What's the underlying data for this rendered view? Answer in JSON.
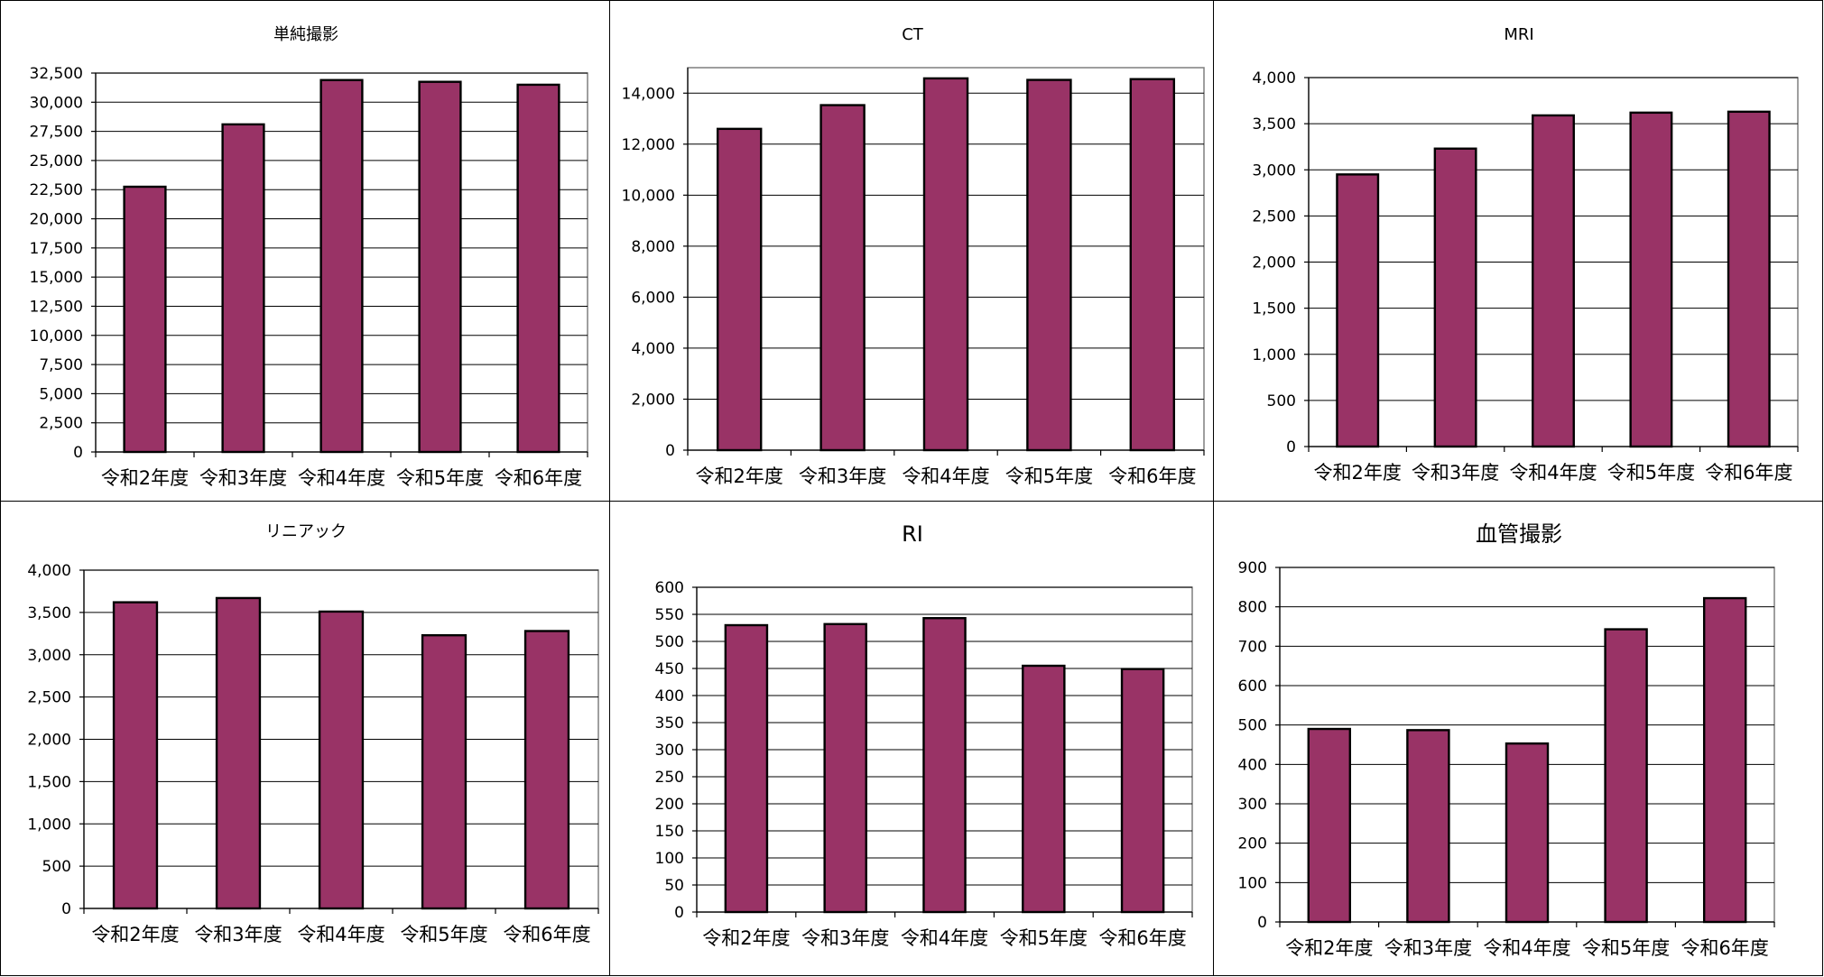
{
  "chart_data": [
    {
      "type": "bar",
      "title": "単純撮影",
      "categories": [
        "令和2年度",
        "令和3年度",
        "令和4年度",
        "令和5年度",
        "令和6年度"
      ],
      "values": [
        22750,
        28100,
        31900,
        31750,
        31500
      ],
      "ylim": [
        0,
        32500
      ],
      "yticks": [
        0,
        2500,
        5000,
        7500,
        10000,
        12500,
        15000,
        17500,
        20000,
        22500,
        25000,
        27500,
        30000,
        32500
      ],
      "ytick_labels": [
        "0",
        "2,500",
        "5,000",
        "7,500",
        "10,000",
        "12,500",
        "15,000",
        "17,500",
        "20,000",
        "22,500",
        "25,000",
        "27,500",
        "30,000",
        "32,500"
      ],
      "xlabel": "",
      "ylabel": "",
      "grid": true,
      "legend": false,
      "bar_color": "#993366"
    },
    {
      "type": "bar",
      "title": "CT",
      "categories": [
        "令和2年度",
        "令和3年度",
        "令和4年度",
        "令和5年度",
        "令和6年度"
      ],
      "values": [
        12600,
        13530,
        14580,
        14520,
        14550
      ],
      "ylim": [
        0,
        15000
      ],
      "yticks": [
        0,
        2000,
        4000,
        6000,
        8000,
        10000,
        12000,
        14000
      ],
      "ytick_labels": [
        "0",
        "2,000",
        "4,000",
        "6,000",
        "8,000",
        "10,000",
        "12,000",
        "14,000"
      ],
      "xlabel": "",
      "ylabel": "",
      "grid": true,
      "legend": false,
      "bar_color": "#993366"
    },
    {
      "type": "bar",
      "title": "MRI",
      "categories": [
        "令和2年度",
        "令和3年度",
        "令和4年度",
        "令和5年度",
        "令和6年度"
      ],
      "values": [
        2950,
        3230,
        3590,
        3620,
        3630
      ],
      "ylim": [
        0,
        4000
      ],
      "yticks": [
        0,
        500,
        1000,
        1500,
        2000,
        2500,
        3000,
        3500,
        4000
      ],
      "ytick_labels": [
        "0",
        "500",
        "1,000",
        "1,500",
        "2,000",
        "2,500",
        "3,000",
        "3,500",
        "4,000"
      ],
      "xlabel": "",
      "ylabel": "",
      "grid": true,
      "legend": false,
      "bar_color": "#993366"
    },
    {
      "type": "bar",
      "title": "リニアック",
      "categories": [
        "令和2年度",
        "令和3年度",
        "令和4年度",
        "令和5年度",
        "令和6年度"
      ],
      "values": [
        3620,
        3670,
        3510,
        3230,
        3280
      ],
      "ylim": [
        0,
        4000
      ],
      "yticks": [
        0,
        500,
        1000,
        1500,
        2000,
        2500,
        3000,
        3500,
        4000
      ],
      "ytick_labels": [
        "0",
        "500",
        "1,000",
        "1,500",
        "2,000",
        "2,500",
        "3,000",
        "3,500",
        "4,000"
      ],
      "xlabel": "",
      "ylabel": "",
      "grid": true,
      "legend": false,
      "bar_color": "#993366"
    },
    {
      "type": "bar",
      "title": "RI",
      "categories": [
        "令和2年度",
        "令和3年度",
        "令和4年度",
        "令和5年度",
        "令和6年度"
      ],
      "values": [
        530,
        532,
        543,
        455,
        449
      ],
      "ylim": [
        0,
        600
      ],
      "yticks": [
        0,
        50,
        100,
        150,
        200,
        250,
        300,
        350,
        400,
        450,
        500,
        550,
        600
      ],
      "ytick_labels": [
        "0",
        "50",
        "100",
        "150",
        "200",
        "250",
        "300",
        "350",
        "400",
        "450",
        "500",
        "550",
        "600"
      ],
      "xlabel": "",
      "ylabel": "",
      "grid": true,
      "legend": false,
      "bar_color": "#993366"
    },
    {
      "type": "bar",
      "title": "血管撮影",
      "categories": [
        "令和2年度",
        "令和3年度",
        "令和4年度",
        "令和5年度",
        "令和6年度"
      ],
      "values": [
        490,
        487,
        453,
        743,
        822
      ],
      "ylim": [
        0,
        900
      ],
      "yticks": [
        0,
        100,
        200,
        300,
        400,
        500,
        600,
        700,
        800,
        900
      ],
      "ytick_labels": [
        "0",
        "100",
        "200",
        "300",
        "400",
        "500",
        "600",
        "700",
        "800",
        "900"
      ],
      "xlabel": "",
      "ylabel": "",
      "grid": true,
      "legend": false,
      "bar_color": "#993366"
    }
  ]
}
